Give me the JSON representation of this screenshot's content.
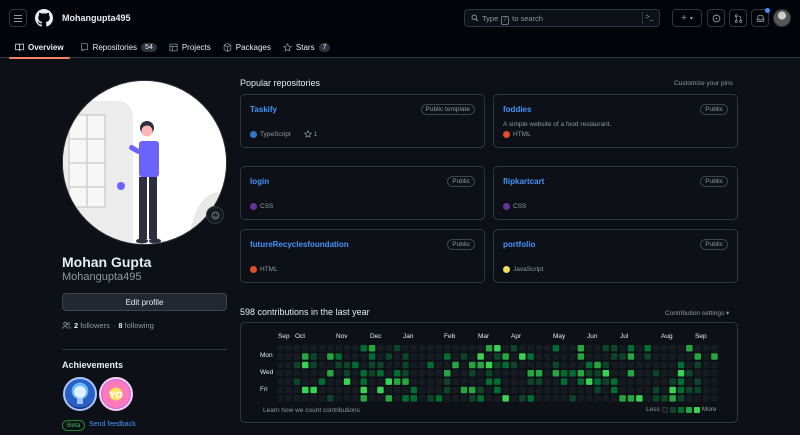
{
  "header": {
    "username": "Mohangupta495",
    "search_prefix": "Type",
    "search_key": "/",
    "search_suffix": "to search"
  },
  "tabs": [
    {
      "label": "Overview",
      "icon": "book-icon"
    },
    {
      "label": "Repositories",
      "count": "54",
      "icon": "repo-icon"
    },
    {
      "label": "Projects",
      "icon": "table-icon"
    },
    {
      "label": "Packages",
      "icon": "package-icon"
    },
    {
      "label": "Stars",
      "count": "7",
      "icon": "star-icon"
    }
  ],
  "profile": {
    "name": "Mohan Gupta",
    "login": "Mohangupta495",
    "edit_label": "Edit profile",
    "followers_count": "2",
    "followers_label": "followers",
    "separator": "·",
    "following_count": "8",
    "following_label": "following"
  },
  "achievements": {
    "title": "Achievements",
    "beta": "Beta",
    "feedback": "Send feedback",
    "badges": [
      "quickdraw-badge",
      "yolo-badge"
    ]
  },
  "popular": {
    "title": "Popular repositories",
    "customize": "Customize your pins",
    "repos": [
      {
        "name": "Taskify",
        "visibility": "Public template",
        "description": "",
        "language": "TypeScript",
        "lang_color": "#3178c6",
        "stars": "1"
      },
      {
        "name": "foddies",
        "visibility": "Public",
        "description": "A simple website of a food restaurant.",
        "language": "HTML",
        "lang_color": "#e34c26",
        "stars": ""
      },
      {
        "name": "login",
        "visibility": "Public",
        "description": "",
        "language": "CSS",
        "lang_color": "#663399",
        "stars": ""
      },
      {
        "name": "flipkartcart",
        "visibility": "Public",
        "description": "",
        "language": "CSS",
        "lang_color": "#663399",
        "stars": ""
      },
      {
        "name": "futureRecyclesfoundation",
        "visibility": "Public",
        "description": "",
        "language": "HTML",
        "lang_color": "#e34c26",
        "stars": ""
      },
      {
        "name": "portfolio",
        "visibility": "Public",
        "description": "",
        "language": "JavaScript",
        "lang_color": "#f1e05a",
        "stars": ""
      }
    ]
  },
  "contributions": {
    "title": "598 contributions in the last year",
    "settings": "Contribution settings ▾",
    "months": [
      "Sep",
      "Oct",
      "Nov",
      "Dec",
      "Jan",
      "Feb",
      "Mar",
      "Apr",
      "May",
      "Jun",
      "Jul",
      "Aug",
      "Sep"
    ],
    "days": [
      "Mon",
      "Wed",
      "Fri"
    ],
    "learn": "Learn how we count contributions",
    "less": "Less",
    "more": "More",
    "level_colors": [
      "#161b22",
      "#0e4429",
      "#006d32",
      "#26a641",
      "#39d353"
    ]
  }
}
